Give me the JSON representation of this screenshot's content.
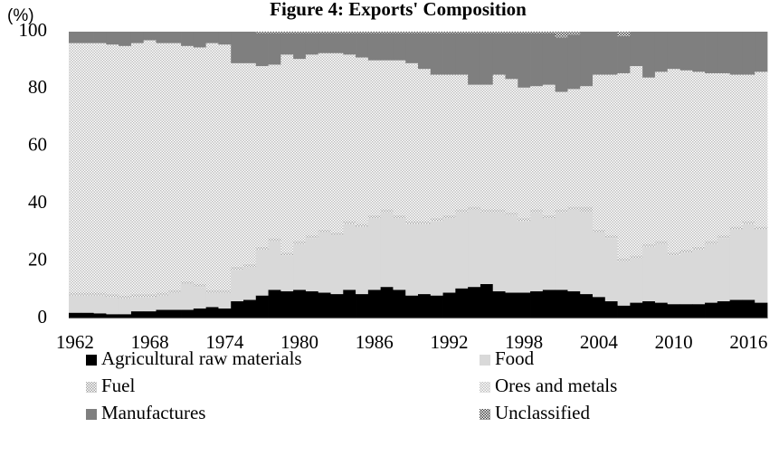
{
  "chart_data": {
    "type": "stacked_bar",
    "title": "Figure 4: Exports' Composition",
    "y_label": "(%)",
    "x": [
      1962,
      1963,
      1964,
      1965,
      1966,
      1967,
      1968,
      1969,
      1970,
      1971,
      1972,
      1973,
      1974,
      1975,
      1976,
      1977,
      1978,
      1979,
      1980,
      1981,
      1982,
      1983,
      1984,
      1985,
      1986,
      1987,
      1988,
      1989,
      1990,
      1991,
      1992,
      1993,
      1994,
      1995,
      1996,
      1997,
      1998,
      1999,
      2000,
      2001,
      2002,
      2003,
      2004,
      2005,
      2006,
      2007,
      2008,
      2009,
      2010,
      2011,
      2012,
      2013,
      2014,
      2015,
      2016,
      2017
    ],
    "xlim": [
      1961.5,
      2017.5
    ],
    "xticks": [
      1962,
      1968,
      1974,
      1980,
      1986,
      1992,
      1998,
      2004,
      2010,
      2016
    ],
    "ylim": [
      0,
      100
    ],
    "yticks": [
      0,
      20,
      40,
      60,
      80,
      100
    ],
    "series": [
      {
        "name": "Agricultural raw materials",
        "color": "#000000",
        "pattern": false,
        "values": [
          2,
          2,
          1.8,
          1.5,
          1.5,
          2.5,
          2.5,
          3,
          3,
          3,
          3.5,
          4,
          3.5,
          6,
          6.5,
          8,
          10,
          9.5,
          10,
          9.5,
          9,
          8.5,
          10,
          8.5,
          10,
          11,
          10,
          8,
          8.5,
          8,
          9,
          10.5,
          11,
          12,
          9.5,
          9,
          9,
          9.5,
          10,
          10,
          9.5,
          8.5,
          7.5,
          6,
          4.5,
          5.5,
          6,
          5.5,
          5,
          5,
          5,
          5.5,
          6,
          6.5,
          6.5,
          5.5
        ]
      },
      {
        "name": "Food",
        "color": "#d9d9d9",
        "pattern": false,
        "values": [
          6,
          6,
          6.2,
          6,
          5.5,
          5,
          5,
          5,
          6,
          9,
          7.5,
          5,
          5.5,
          11,
          11.5,
          16,
          17,
          12.5,
          16,
          18.5,
          21,
          20.5,
          23,
          23.5,
          25,
          26,
          25,
          25,
          24.5,
          26,
          26,
          26.5,
          27,
          25,
          27.5,
          27,
          25,
          27.5,
          25,
          27,
          28.5,
          28.5,
          22.5,
          22,
          15.5,
          15.5,
          19,
          20.5,
          17,
          18,
          19,
          20.5,
          22,
          24.5,
          26.5,
          25.5
        ]
      },
      {
        "name": "Fuel",
        "color": "#a6a6a6",
        "pattern": true,
        "values": [
          1,
          1,
          1,
          1,
          1,
          1,
          1,
          1,
          1,
          1,
          1,
          1,
          1,
          1,
          1,
          1,
          1,
          1,
          1,
          1,
          1,
          1,
          1,
          1,
          1,
          1,
          1,
          1,
          1,
          1,
          1,
          1,
          1,
          1,
          1,
          1,
          1,
          1,
          1,
          1,
          1,
          2,
          1,
          1,
          1,
          1,
          1,
          1,
          1,
          1,
          1,
          1,
          1,
          1,
          1,
          1
        ]
      },
      {
        "name": "Ores and metals",
        "color": "#bfbfbf",
        "pattern": true,
        "values": [
          87,
          87,
          87,
          87,
          87,
          87.5,
          88.5,
          87,
          86,
          82,
          82.5,
          86,
          85.5,
          71,
          70,
          63,
          60.5,
          69,
          63.5,
          63,
          61.5,
          62.5,
          58,
          58,
          54,
          52,
          54,
          55,
          53,
          50,
          49,
          47,
          42.5,
          43.5,
          47,
          46.5,
          45.5,
          43,
          45.5,
          41,
          41,
          42,
          54,
          56,
          64.5,
          66,
          58,
          59,
          64,
          62.5,
          61,
          58.5,
          56.5,
          53,
          51,
          54
        ]
      },
      {
        "name": "Manufactures",
        "color": "#7f7f7f",
        "pattern": false,
        "values": [
          4,
          4,
          4,
          4.5,
          5,
          4,
          3,
          4,
          4,
          5,
          5.5,
          4,
          4.5,
          11,
          11,
          11.5,
          11,
          7.5,
          9,
          7.5,
          7,
          7,
          7.5,
          8.5,
          9.5,
          9.5,
          9.5,
          10.5,
          12.5,
          14.5,
          14.5,
          14.5,
          18,
          18,
          14.5,
          16,
          19,
          18.5,
          18,
          19,
          19,
          19,
          15,
          15,
          13,
          12,
          16,
          14,
          13,
          13.5,
          14,
          14.5,
          14.5,
          15,
          15,
          14
        ]
      },
      {
        "name": "Unclassified",
        "color": "#404040",
        "pattern": true,
        "values": [
          0,
          0,
          0,
          0,
          0,
          0,
          0,
          0,
          0,
          0,
          0,
          0,
          0,
          0,
          0,
          0.5,
          0.5,
          0.5,
          0.5,
          0.5,
          0.5,
          0.5,
          0.5,
          0.5,
          0.5,
          0.5,
          0.5,
          0.5,
          0.5,
          0.5,
          0.5,
          0.5,
          0.5,
          0.5,
          0.5,
          0.5,
          0.5,
          0.5,
          0.5,
          2,
          1,
          0,
          0,
          0,
          1.5,
          0,
          0,
          0,
          0,
          0,
          0,
          0,
          0,
          0,
          0,
          0
        ]
      }
    ]
  }
}
